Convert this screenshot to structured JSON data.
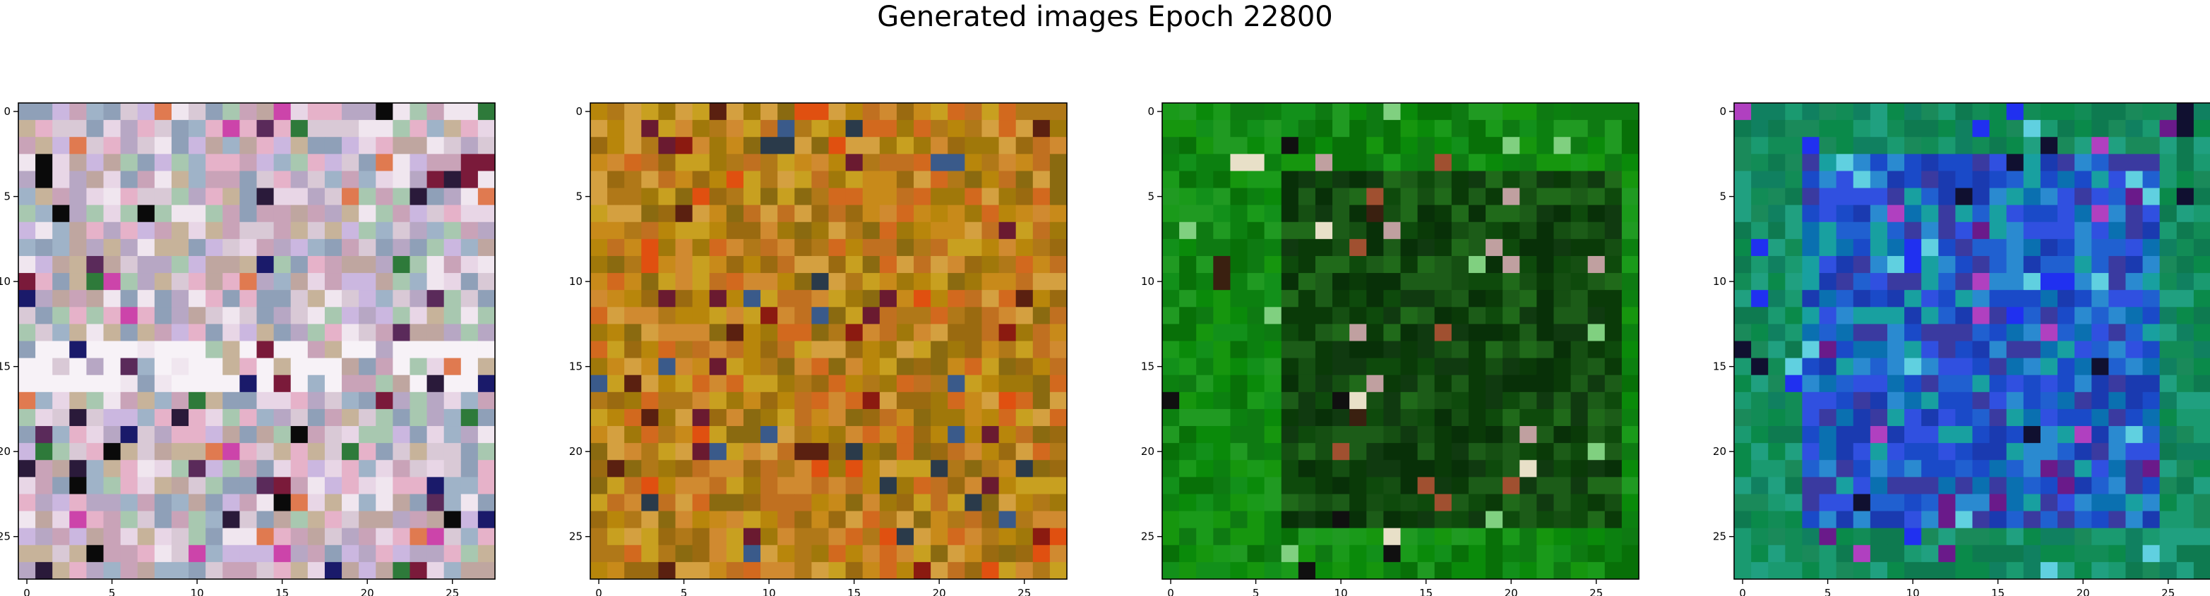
{
  "title": "Generated images Epoch 22800",
  "chart_data": [
    {
      "type": "heatmap",
      "title": "",
      "grid_size": [
        28,
        28
      ],
      "xlim": [
        -0.5,
        27.5
      ],
      "ylim": [
        27.5,
        -0.5
      ],
      "x_ticks": [
        0,
        5,
        10,
        15,
        20,
        25
      ],
      "y_ticks": [
        0,
        5,
        10,
        15,
        20,
        25
      ],
      "palette": [
        "#d9c9d6",
        "#b7a7c4",
        "#c9a3b8",
        "#9fb3c8",
        "#e8d6e6",
        "#a8c8b0",
        "#c7b39a",
        "#e6b2c9",
        "#8fa0b8",
        "#cbb7e0",
        "#bfa6a0",
        "#f0e6ef"
      ],
      "accents": [
        "#2a1a3a",
        "#5a2a5a",
        "#1a1a6a",
        "#7a1a3a",
        "#2e7a3a",
        "#cc44aa",
        "#e07a50",
        "#0a0a0a"
      ],
      "accent_rate": 0.1,
      "light_rows": [
        14,
        15,
        16
      ],
      "light_color": "#f7f2f7"
    },
    {
      "type": "heatmap",
      "title": "",
      "grid_size": [
        28,
        28
      ],
      "xlim": [
        -0.5,
        27.5
      ],
      "ylim": [
        27.5,
        -0.5
      ],
      "x_ticks": [
        0,
        5,
        10,
        15,
        20,
        25
      ],
      "y_ticks": [
        0,
        5,
        10,
        15,
        20,
        25
      ],
      "palette": [
        "#c88a1a",
        "#b8860b",
        "#d2691e",
        "#a0780a",
        "#c8a020",
        "#9a6a10",
        "#d08a30",
        "#b07818",
        "#8a6a10",
        "#c07020",
        "#d4a040"
      ],
      "accents": [
        "#8b1a10",
        "#5a2010",
        "#2a3a4a",
        "#e05010",
        "#3a5a8a",
        "#6a1a30"
      ],
      "accent_rate": 0.1,
      "light_rows": [],
      "light_color": ""
    },
    {
      "type": "heatmap",
      "title": "",
      "grid_size": [
        28,
        28
      ],
      "xlim": [
        -0.5,
        27.5
      ],
      "ylim": [
        27.5,
        -0.5
      ],
      "x_ticks": [
        0,
        5,
        10,
        15,
        20,
        25
      ],
      "y_ticks": [
        0,
        5,
        10,
        15,
        20,
        25
      ],
      "palette": [
        "#0a8a0a",
        "#16960e",
        "#0e7a12",
        "#1a9a1a",
        "#087008",
        "#209a22",
        "#0c8010",
        "#12901a"
      ],
      "inner_palette": [
        "#0a3a08",
        "#0e4a0c",
        "#154f12",
        "#1c5c18",
        "#083008",
        "#103a10",
        "#206a1a"
      ],
      "inner_box": [
        7,
        26,
        4,
        24
      ],
      "accents": [
        "#e8e0c8",
        "#80d080",
        "#101010",
        "#3a2010",
        "#a05030",
        "#c0a0a0"
      ],
      "accent_rate": 0.06,
      "light_rows": [],
      "light_color": ""
    },
    {
      "type": "heatmap",
      "title": "",
      "grid_size": [
        28,
        28
      ],
      "xlim": [
        -0.5,
        27.5
      ],
      "ylim": [
        27.5,
        -0.5
      ],
      "x_ticks": [
        0,
        5,
        10,
        15,
        20,
        25
      ],
      "y_ticks": [
        0,
        5,
        10,
        15,
        20,
        25
      ],
      "palette": [
        "#0a8a4a",
        "#128c56",
        "#1a9a70",
        "#0e7a50",
        "#20a080",
        "#108060",
        "#1a8a5a"
      ],
      "inner_palette": [
        "#1a4ac8",
        "#2060d0",
        "#1a3ab0",
        "#3050e0",
        "#0a70b0",
        "#2a8ad0",
        "#3a3aa0",
        "#18a0a0"
      ],
      "inner_box": [
        4,
        24,
        3,
        24
      ],
      "accents": [
        "#6a1a8a",
        "#101030",
        "#60d0e0",
        "#b040c0",
        "#2030f0"
      ],
      "accent_rate": 0.08,
      "light_rows": [],
      "light_color": ""
    }
  ]
}
